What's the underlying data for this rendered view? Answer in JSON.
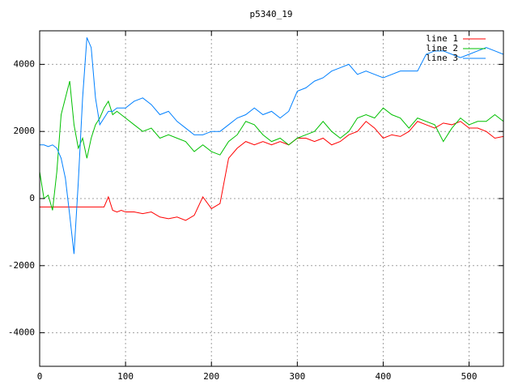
{
  "chart_data": {
    "type": "line",
    "title": "p5340_19",
    "x": [
      0,
      5,
      10,
      15,
      20,
      25,
      30,
      35,
      40,
      45,
      50,
      55,
      60,
      65,
      70,
      75,
      80,
      85,
      90,
      95,
      100,
      110,
      120,
      130,
      140,
      150,
      160,
      170,
      180,
      190,
      200,
      210,
      220,
      230,
      240,
      250,
      260,
      270,
      280,
      290,
      300,
      310,
      320,
      330,
      340,
      350,
      360,
      370,
      380,
      390,
      400,
      410,
      420,
      430,
      440,
      450,
      460,
      470,
      480,
      490,
      500,
      510,
      520,
      530,
      540
    ],
    "series": [
      {
        "name": "line 1",
        "color": "#ff0000",
        "values": [
          -250,
          -250,
          -250,
          -250,
          -250,
          -250,
          -250,
          -250,
          -250,
          -250,
          -250,
          -250,
          -250,
          -250,
          -250,
          -250,
          50,
          -350,
          -400,
          -350,
          -400,
          -400,
          -450,
          -400,
          -550,
          -600,
          -550,
          -650,
          -500,
          50,
          -300,
          -150,
          1200,
          1500,
          1700,
          1600,
          1700,
          1600,
          1700,
          1600,
          1800,
          1800,
          1700,
          1800,
          1600,
          1700,
          1900,
          2000,
          2300,
          2100,
          1800,
          1900,
          1850,
          2000,
          2300,
          2200,
          2100,
          2250,
          2200,
          2300,
          2100,
          2100,
          2000,
          1800,
          1850
        ]
      },
      {
        "name": "line 2",
        "color": "#00c000",
        "values": [
          800,
          0,
          100,
          -350,
          800,
          2500,
          3000,
          3500,
          2200,
          1500,
          1800,
          1200,
          1800,
          2200,
          2400,
          2700,
          2900,
          2500,
          2600,
          2500,
          2400,
          2200,
          2000,
          2100,
          1800,
          1900,
          1800,
          1700,
          1400,
          1600,
          1400,
          1300,
          1700,
          1900,
          2300,
          2200,
          1900,
          1700,
          1800,
          1600,
          1800,
          1900,
          2000,
          2300,
          2000,
          1800,
          2000,
          2400,
          2500,
          2400,
          2700,
          2500,
          2400,
          2100,
          2400,
          2300,
          2200,
          1700,
          2100,
          2400,
          2200,
          2300,
          2300,
          2500,
          2300
        ]
      },
      {
        "name": "line 3",
        "color": "#0080ff",
        "values": [
          1600,
          1600,
          1550,
          1600,
          1500,
          1200,
          600,
          -500,
          -1650,
          500,
          3000,
          4800,
          4500,
          3000,
          2200,
          2400,
          2600,
          2600,
          2700,
          2700,
          2700,
          2900,
          3000,
          2800,
          2500,
          2600,
          2300,
          2100,
          1900,
          1900,
          2000,
          2000,
          2200,
          2400,
          2500,
          2700,
          2500,
          2600,
          2400,
          2600,
          3200,
          3300,
          3500,
          3600,
          3800,
          3900,
          4000,
          3700,
          3800,
          3700,
          3600,
          3700,
          3800,
          3800,
          3800,
          4300,
          4400,
          4400,
          4300,
          4200,
          4300,
          4400,
          4500,
          4400,
          4300
        ]
      }
    ],
    "xlim": [
      0,
      540
    ],
    "ylim": [
      -5000,
      5000
    ],
    "xticks": [
      0,
      100,
      200,
      300,
      400,
      500
    ],
    "yticks": [
      -4000,
      -2000,
      0,
      2000,
      4000
    ],
    "grid": true,
    "legend": "top-right"
  }
}
